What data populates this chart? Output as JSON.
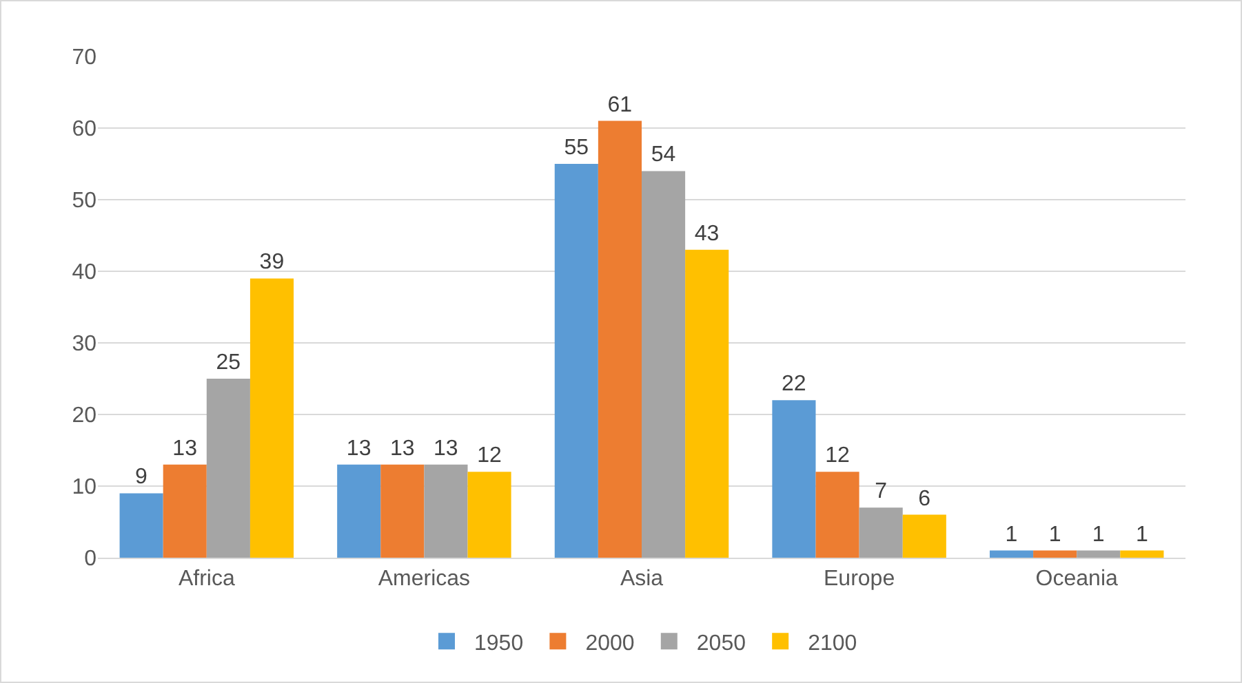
{
  "chart_data": {
    "type": "bar",
    "categories": [
      "Africa",
      "Americas",
      "Asia",
      "Europe",
      "Oceania"
    ],
    "series": [
      {
        "name": "1950",
        "color": "#5b9bd5",
        "values": [
          9,
          13,
          55,
          22,
          1
        ]
      },
      {
        "name": "2000",
        "color": "#ed7d31",
        "values": [
          13,
          13,
          61,
          12,
          1
        ]
      },
      {
        "name": "2050",
        "color": "#a5a5a5",
        "values": [
          25,
          13,
          54,
          7,
          1
        ]
      },
      {
        "name": "2100",
        "color": "#ffc000",
        "values": [
          39,
          12,
          43,
          6,
          1
        ]
      }
    ],
    "ylim": [
      0,
      70
    ],
    "yticks": [
      0,
      10,
      20,
      30,
      40,
      50,
      60,
      70
    ],
    "grid": "y",
    "legend": "bottom",
    "data_labels": true
  }
}
